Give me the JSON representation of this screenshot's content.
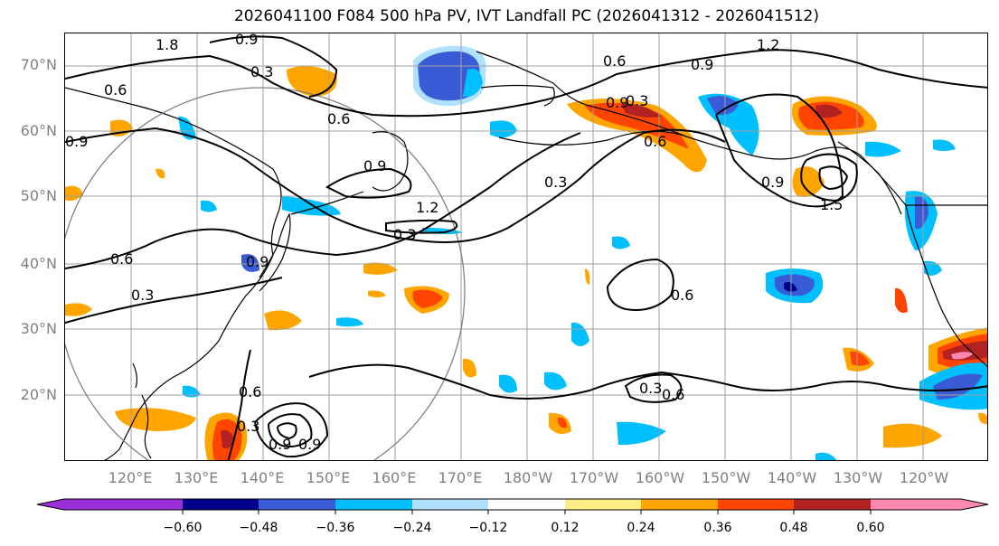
{
  "title": "2026041100 F084 500 hPa PV, IVT Landfall PC (2026041312 - 2026041512)",
  "lat_labels": [
    "70°N",
    "60°N",
    "50°N",
    "40°N",
    "30°N",
    "20°N"
  ],
  "lon_labels": [
    "120°E",
    "130°E",
    "140°E",
    "150°E",
    "160°E",
    "170°E",
    "180°W",
    "170°W",
    "160°W",
    "150°W",
    "140°W",
    "130°W",
    "120°W"
  ],
  "colorbar": {
    "colors": [
      "#9b30d9",
      "#00008b",
      "#3a5bd6",
      "#00bfff",
      "#b0e2ff",
      "#ffffff",
      "#ffee88",
      "#ffa500",
      "#ff4500",
      "#b22222",
      "#ff88b0"
    ],
    "ticks": [
      "−0.60",
      "−0.48",
      "−0.36",
      "−0.24",
      "−0.12",
      "0.12",
      "0.24",
      "0.36",
      "0.48",
      "0.60"
    ]
  },
  "contour_labels": [
    "1.8",
    "0.9",
    "0.3",
    "0.6",
    "0.6",
    "0.9",
    "0.9",
    "1.2",
    "0.3",
    "0.6",
    "0.9",
    "0.3",
    "0.6",
    "0.9",
    "1.2",
    "0.6",
    "0.3",
    "0.6",
    "0.9",
    "0.3",
    "0.9",
    "1.5",
    "0.9",
    "0.6",
    "0.3",
    "0.3",
    "0.9",
    "0.6"
  ],
  "colors": {
    "contour": "#000000",
    "grid": "#a0a0a0",
    "circle": "#808080",
    "coast": "#000000"
  }
}
